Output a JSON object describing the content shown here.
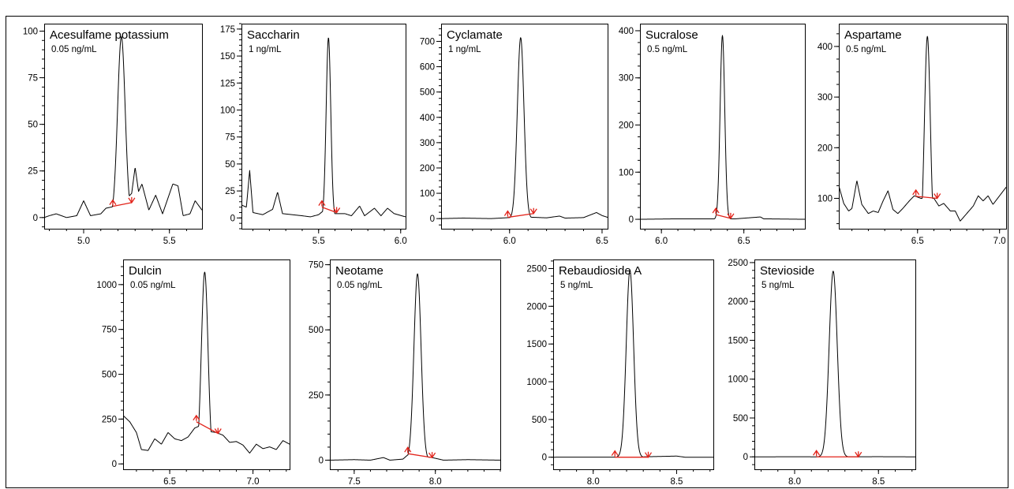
{
  "chart_data": [
    {
      "type": "line",
      "title": "Acesulfame potassium",
      "subtitle": "0.05 ng/mL",
      "xlim": [
        4.77,
        5.69
      ],
      "ylim": [
        -6,
        104
      ],
      "xticks": [
        5.0,
        5.5
      ],
      "x_minor_step": 0.1,
      "yticks": [
        0,
        25,
        50,
        75,
        100
      ],
      "y_minor_step": 5,
      "x_decimals": 1,
      "peak": {
        "rt": 5.22,
        "height": 97,
        "sigma": 0.022
      },
      "baseline_points": [
        [
          4.77,
          0
        ],
        [
          4.8,
          1
        ],
        [
          4.84,
          2
        ],
        [
          4.9,
          0
        ],
        [
          4.96,
          1
        ],
        [
          5.0,
          9
        ],
        [
          5.04,
          1
        ],
        [
          5.1,
          2
        ],
        [
          5.13,
          5
        ],
        [
          5.18,
          6
        ],
        [
          5.24,
          9
        ],
        [
          5.28,
          13
        ],
        [
          5.3,
          27
        ],
        [
          5.32,
          14
        ],
        [
          5.34,
          18
        ],
        [
          5.38,
          4
        ],
        [
          5.42,
          12
        ],
        [
          5.46,
          2
        ],
        [
          5.52,
          18
        ],
        [
          5.55,
          17
        ],
        [
          5.58,
          1
        ],
        [
          5.62,
          2
        ],
        [
          5.65,
          9
        ],
        [
          5.69,
          4
        ]
      ],
      "integration": {
        "start": [
          5.17,
          6
        ],
        "end": [
          5.28,
          8
        ]
      }
    },
    {
      "type": "line",
      "title": "Saccharin",
      "subtitle": "1 ng/mL",
      "xlim": [
        5.03,
        6.03
      ],
      "ylim": [
        -10,
        180
      ],
      "xticks": [
        5.5,
        6.0
      ],
      "x_minor_step": 0.1,
      "yticks": [
        0,
        25,
        50,
        75,
        100,
        125,
        150,
        175
      ],
      "y_minor_step": 5,
      "x_decimals": 1,
      "peak": {
        "rt": 5.56,
        "height": 167,
        "sigma": 0.014
      },
      "baseline_points": [
        [
          5.03,
          12
        ],
        [
          5.06,
          10
        ],
        [
          5.08,
          44
        ],
        [
          5.1,
          5
        ],
        [
          5.16,
          3
        ],
        [
          5.22,
          8
        ],
        [
          5.25,
          24
        ],
        [
          5.28,
          4
        ],
        [
          5.34,
          3
        ],
        [
          5.4,
          2
        ],
        [
          5.45,
          1
        ],
        [
          5.5,
          3
        ],
        [
          5.54,
          8
        ],
        [
          5.6,
          4
        ],
        [
          5.66,
          4
        ],
        [
          5.7,
          2
        ],
        [
          5.75,
          11
        ],
        [
          5.78,
          2
        ],
        [
          5.84,
          9
        ],
        [
          5.88,
          2
        ],
        [
          5.92,
          9
        ],
        [
          5.96,
          4
        ],
        [
          6.03,
          1
        ]
      ],
      "integration": {
        "start": [
          5.52,
          10
        ],
        "end": [
          5.61,
          5
        ]
      }
    },
    {
      "type": "line",
      "title": "Cyclamate",
      "subtitle": "1 ng/mL",
      "xlim": [
        5.63,
        6.53
      ],
      "ylim": [
        -40,
        770
      ],
      "xticks": [
        6.0,
        6.5
      ],
      "x_minor_step": 0.1,
      "yticks": [
        0,
        100,
        200,
        300,
        400,
        500,
        600,
        700
      ],
      "y_minor_step": 25,
      "x_decimals": 1,
      "peak": {
        "rt": 6.06,
        "height": 715,
        "sigma": 0.018
      },
      "baseline_points": [
        [
          5.63,
          0
        ],
        [
          5.75,
          2
        ],
        [
          5.9,
          0
        ],
        [
          6.0,
          4
        ],
        [
          6.1,
          6
        ],
        [
          6.2,
          3
        ],
        [
          6.27,
          10
        ],
        [
          6.3,
          2
        ],
        [
          6.4,
          4
        ],
        [
          6.47,
          24
        ],
        [
          6.5,
          12
        ],
        [
          6.53,
          5
        ]
      ],
      "integration": {
        "start": [
          5.99,
          5
        ],
        "end": [
          6.13,
          20
        ]
      }
    },
    {
      "type": "line",
      "title": "Sucralose",
      "subtitle": "0.5 ng/mL",
      "xlim": [
        5.87,
        6.87
      ],
      "ylim": [
        -20,
        415
      ],
      "xticks": [
        6.0,
        6.5
      ],
      "x_minor_step": 0.1,
      "yticks": [
        0,
        100,
        200,
        300,
        400
      ],
      "y_minor_step": 25,
      "x_decimals": 1,
      "peak": {
        "rt": 6.37,
        "height": 390,
        "sigma": 0.014
      },
      "baseline_points": [
        [
          5.87,
          0
        ],
        [
          6.1,
          1
        ],
        [
          6.3,
          1
        ],
        [
          6.45,
          1
        ],
        [
          6.6,
          5
        ],
        [
          6.62,
          1
        ],
        [
          6.87,
          0
        ]
      ],
      "integration": {
        "start": [
          6.33,
          10
        ],
        "end": [
          6.42,
          2
        ]
      }
    },
    {
      "type": "line",
      "title": "Aspartame",
      "subtitle": "0.5 ng/mL",
      "xlim": [
        6.02,
        7.04
      ],
      "ylim": [
        40,
        445
      ],
      "xticks": [
        6.5,
        7.0
      ],
      "x_minor_step": 0.1,
      "yticks": [
        100,
        200,
        300,
        400
      ],
      "y_minor_step": 25,
      "x_decimals": 1,
      "peak": {
        "rt": 6.56,
        "height": 420,
        "sigma": 0.018
      },
      "baseline_points": [
        [
          6.02,
          125
        ],
        [
          6.05,
          90
        ],
        [
          6.08,
          75
        ],
        [
          6.1,
          80
        ],
        [
          6.13,
          135
        ],
        [
          6.16,
          88
        ],
        [
          6.2,
          70
        ],
        [
          6.23,
          75
        ],
        [
          6.26,
          72
        ],
        [
          6.29,
          95
        ],
        [
          6.32,
          115
        ],
        [
          6.35,
          78
        ],
        [
          6.38,
          70
        ],
        [
          6.41,
          80
        ],
        [
          6.45,
          95
        ],
        [
          6.48,
          105
        ],
        [
          6.52,
          100
        ],
        [
          6.6,
          100
        ],
        [
          6.63,
          85
        ],
        [
          6.66,
          90
        ],
        [
          6.7,
          75
        ],
        [
          6.73,
          75
        ],
        [
          6.76,
          55
        ],
        [
          6.8,
          70
        ],
        [
          6.84,
          85
        ],
        [
          6.87,
          105
        ],
        [
          6.9,
          95
        ],
        [
          6.93,
          105
        ],
        [
          6.96,
          88
        ],
        [
          7.0,
          105
        ],
        [
          7.04,
          122
        ]
      ],
      "integration": {
        "start": [
          6.49,
          104
        ],
        "end": [
          6.62,
          100
        ]
      }
    },
    {
      "type": "line",
      "title": "Dulcin",
      "subtitle": "0.05 ng/mL",
      "xlim": [
        6.22,
        7.22
      ],
      "ylim": [
        -30,
        1140
      ],
      "xticks": [
        6.5,
        7.0
      ],
      "x_minor_step": 0.1,
      "yticks": [
        0,
        250,
        500,
        750,
        1000
      ],
      "y_minor_step": 50,
      "x_decimals": 1,
      "peak": {
        "rt": 6.71,
        "height": 1070,
        "sigma": 0.02
      },
      "baseline_points": [
        [
          6.22,
          270
        ],
        [
          6.26,
          235
        ],
        [
          6.3,
          175
        ],
        [
          6.33,
          80
        ],
        [
          6.37,
          75
        ],
        [
          6.41,
          140
        ],
        [
          6.45,
          110
        ],
        [
          6.49,
          175
        ],
        [
          6.53,
          140
        ],
        [
          6.57,
          130
        ],
        [
          6.61,
          150
        ],
        [
          6.65,
          200
        ],
        [
          6.7,
          220
        ],
        [
          6.74,
          180
        ],
        [
          6.78,
          175
        ],
        [
          6.82,
          160
        ],
        [
          6.86,
          120
        ],
        [
          6.9,
          125
        ],
        [
          6.94,
          105
        ],
        [
          6.98,
          60
        ],
        [
          7.02,
          110
        ],
        [
          7.06,
          85
        ],
        [
          7.1,
          95
        ],
        [
          7.14,
          80
        ],
        [
          7.18,
          130
        ],
        [
          7.22,
          110
        ]
      ],
      "integration": {
        "start": [
          6.66,
          235
        ],
        "end": [
          6.79,
          170
        ]
      }
    },
    {
      "type": "line",
      "title": "Neotame",
      "subtitle": "0.05 ng/mL",
      "xlim": [
        7.35,
        8.4
      ],
      "ylim": [
        -35,
        770
      ],
      "xticks": [
        7.5,
        8.0
      ],
      "x_minor_step": 0.1,
      "yticks": [
        0,
        250,
        500,
        750
      ],
      "y_minor_step": 50,
      "x_decimals": 1,
      "peak": {
        "rt": 7.89,
        "height": 715,
        "sigma": 0.022
      },
      "baseline_points": [
        [
          7.35,
          0
        ],
        [
          7.5,
          2
        ],
        [
          7.6,
          0
        ],
        [
          7.68,
          10
        ],
        [
          7.72,
          0
        ],
        [
          7.8,
          4
        ],
        [
          7.83,
          20
        ],
        [
          7.98,
          10
        ],
        [
          8.05,
          0
        ],
        [
          8.2,
          2
        ],
        [
          8.4,
          0
        ]
      ],
      "integration": {
        "start": [
          7.83,
          25
        ],
        "end": [
          7.98,
          10
        ]
      }
    },
    {
      "type": "line",
      "title": "Rebaudioside A",
      "subtitle": "5 ng/mL",
      "xlim": [
        7.76,
        8.72
      ],
      "ylim": [
        -160,
        2620
      ],
      "xticks": [
        8.0,
        8.5
      ],
      "x_minor_step": 0.1,
      "yticks": [
        0,
        500,
        1000,
        1500,
        2000,
        2500
      ],
      "y_minor_step": 100,
      "x_decimals": 1,
      "peak": {
        "rt": 8.22,
        "height": 2480,
        "sigma": 0.022
      },
      "baseline_points": [
        [
          7.76,
          0
        ],
        [
          8.0,
          1
        ],
        [
          8.2,
          0
        ],
        [
          8.5,
          15
        ],
        [
          8.55,
          0
        ],
        [
          8.72,
          0
        ]
      ],
      "integration": {
        "start": [
          8.13,
          0
        ],
        "end": [
          8.33,
          0
        ]
      }
    },
    {
      "type": "line",
      "title": "Stevioside",
      "subtitle": "5 ng/mL",
      "xlim": [
        7.76,
        8.72
      ],
      "ylim": [
        -160,
        2540
      ],
      "xticks": [
        8.0,
        8.5
      ],
      "x_minor_step": 0.1,
      "yticks": [
        0,
        500,
        1000,
        1500,
        2000,
        2500
      ],
      "y_minor_step": 100,
      "x_decimals": 1,
      "peak": {
        "rt": 8.23,
        "height": 2390,
        "sigma": 0.024
      },
      "baseline_points": [
        [
          7.76,
          0
        ],
        [
          8.0,
          1
        ],
        [
          8.2,
          0
        ],
        [
          8.5,
          2
        ],
        [
          8.72,
          0
        ]
      ],
      "integration": {
        "start": [
          8.13,
          0
        ],
        "end": [
          8.38,
          0
        ]
      }
    }
  ]
}
